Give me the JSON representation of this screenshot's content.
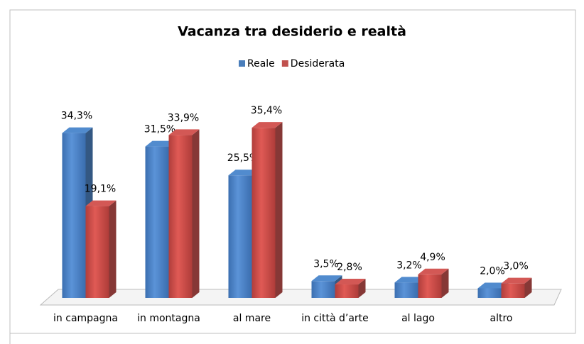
{
  "chart_data": {
    "type": "bar3d",
    "title": "Vacanza tra desiderio e realtà",
    "categories": [
      "in campagna",
      "in montagna",
      "al mare",
      "in città d’arte",
      "al lago",
      "altro"
    ],
    "series": [
      {
        "name": "Reale",
        "color": "#4a7ebb",
        "values": [
          34.3,
          31.5,
          25.5,
          3.5,
          3.2,
          2.0
        ],
        "value_labels": [
          "34,3%",
          "31,5%",
          "25,5%",
          "3,5%",
          "3,2%",
          "2,0%"
        ]
      },
      {
        "name": "Desiderata",
        "color": "#c0504d",
        "values": [
          19.1,
          33.9,
          35.4,
          2.8,
          4.9,
          3.0
        ],
        "value_labels": [
          "19,1%",
          "33,9%",
          "35,4%",
          "2,8%",
          "4,9%",
          "3,0%"
        ]
      }
    ],
    "ylim": [
      0,
      40
    ],
    "legend": "top"
  }
}
